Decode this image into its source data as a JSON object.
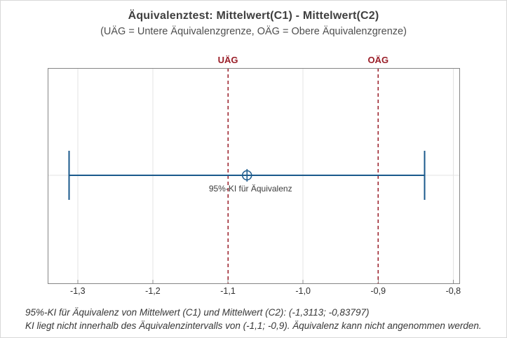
{
  "header": {
    "title": "Äquivalenztest: Mittelwert(C1) - Mittelwert(C2)",
    "subtitle": "(UÄG = Untere Äquivalenzgrenze, OÄG = Obere Äquivalenzgrenze)"
  },
  "chart_data": {
    "type": "interval",
    "title": "Äquivalenztest: Mittelwert(C1) - Mittelwert(C2)",
    "subtitle": "(UÄG = Untere Äquivalenzgrenze, OÄG = Obere Äquivalenzgrenze)",
    "xlim": [
      -1.34,
      -0.791
    ],
    "ticks": [
      -1.3,
      -1.2,
      -1.1,
      -1.0,
      -0.9,
      -0.8
    ],
    "tick_labels": [
      "-1,3",
      "-1,2",
      "-1,1",
      "-1,0",
      "-0,9",
      "-0,8"
    ],
    "gridlines_x": [
      -1.3,
      -1.2,
      -1.0,
      -0.8
    ],
    "grid_on": true,
    "limits": {
      "lower": {
        "label": "UÄG",
        "value": -1.1
      },
      "upper": {
        "label": "OÄG",
        "value": -0.9
      }
    },
    "interval": {
      "low": -1.3113,
      "high": -0.83797,
      "center": -1.074635,
      "label": "95%-KI für Äquivalenz"
    },
    "colors": {
      "interval_blue": "#1b5a8c",
      "limit_red": "#9a1e28",
      "grid": "#e3e3e3",
      "frame": "#858585",
      "tick": "#8f8f8f"
    }
  },
  "footer": {
    "line1": "95%-KI für Äquivalenz von Mittelwert (C1) und Mittelwert (C2): (-1,3113; -0,83797)",
    "line2": "KI liegt nicht innerhalb des Äquivalenzintervalls von (-1,1; -0,9). Äquivalenz kann nicht angenommen werden."
  }
}
